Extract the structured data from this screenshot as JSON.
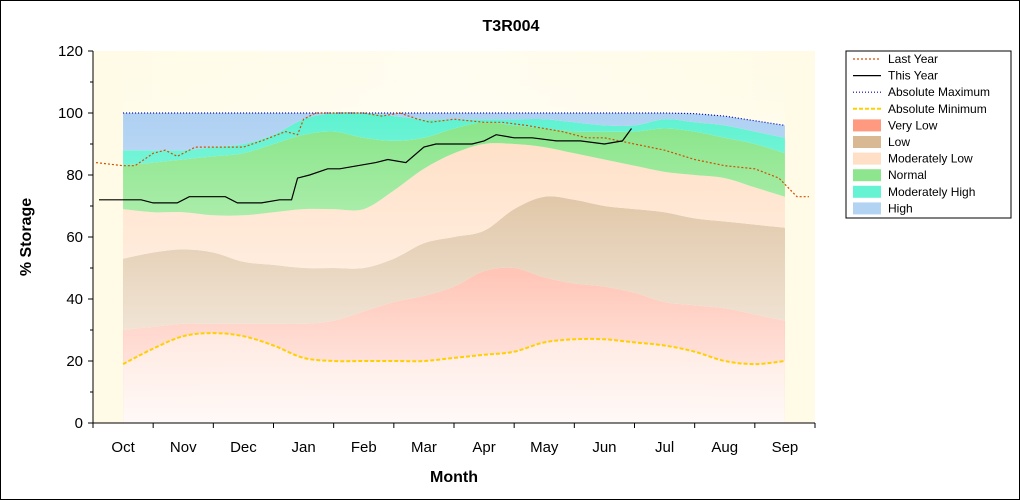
{
  "chart_data": {
    "type": "area",
    "title": "T3R004",
    "xlabel": "Month",
    "ylabel": "% Storage",
    "ylim": [
      0,
      120
    ],
    "yticks": [
      0,
      20,
      40,
      60,
      80,
      100,
      120
    ],
    "months": [
      "Oct",
      "Nov",
      "Dec",
      "Jan",
      "Feb",
      "Mar",
      "Apr",
      "May",
      "Jun",
      "Jul",
      "Aug",
      "Sep"
    ],
    "legend_position": "top-right",
    "grid": false,
    "x_domain": [
      -0.5,
      11.5
    ],
    "series": [
      {
        "name": "Very Low",
        "kind": "band",
        "color": "#ff8060",
        "x": [
          0,
          0.5,
          1,
          1.5,
          2,
          2.5,
          3,
          3.5,
          4,
          4.5,
          5,
          5.5,
          6,
          6.5,
          7,
          7.5,
          8,
          8.5,
          9,
          9.5,
          10,
          10.5,
          11
        ],
        "lower": [
          19,
          24,
          28,
          29,
          28,
          25,
          21,
          20,
          20,
          20,
          20,
          21,
          22,
          23,
          26,
          27,
          27,
          26,
          25,
          23,
          20,
          19,
          20
        ],
        "upper": [
          30,
          31,
          32,
          32,
          32,
          32,
          32,
          33,
          36,
          39,
          41,
          44,
          49,
          50,
          47,
          45,
          44,
          42,
          39,
          38,
          37,
          35,
          33
        ]
      },
      {
        "name": "Low",
        "kind": "band",
        "color": "#d0a878",
        "x": [
          0,
          0.5,
          1,
          1.5,
          2,
          2.5,
          3,
          3.5,
          4,
          4.5,
          5,
          5.5,
          6,
          6.5,
          7,
          7.5,
          8,
          8.5,
          9,
          9.5,
          10,
          10.5,
          11
        ],
        "lower": [
          30,
          31,
          32,
          32,
          32,
          32,
          32,
          33,
          36,
          39,
          41,
          44,
          49,
          50,
          47,
          45,
          44,
          42,
          39,
          38,
          37,
          35,
          33
        ],
        "upper": [
          53,
          55,
          56,
          55,
          52,
          51,
          50,
          50,
          50,
          53,
          58,
          60,
          62,
          69,
          73,
          72,
          70,
          69,
          68,
          66,
          65,
          64,
          63
        ]
      },
      {
        "name": "Moderately Low",
        "kind": "band",
        "color": "#ffd8b8",
        "x": [
          0,
          0.5,
          1,
          1.5,
          2,
          2.5,
          3,
          3.5,
          4,
          4.5,
          5,
          5.5,
          6,
          6.5,
          7,
          7.5,
          8,
          8.5,
          9,
          9.5,
          10,
          10.5,
          11
        ],
        "lower": [
          53,
          55,
          56,
          55,
          52,
          51,
          50,
          50,
          50,
          53,
          58,
          60,
          62,
          69,
          73,
          72,
          70,
          69,
          68,
          66,
          65,
          64,
          63
        ],
        "upper": [
          69,
          68,
          68,
          67,
          67,
          68,
          69,
          69,
          69,
          75,
          82,
          87,
          90,
          90,
          89,
          87,
          85,
          83,
          81,
          80,
          79,
          76,
          73
        ]
      },
      {
        "name": "Normal",
        "kind": "band",
        "color": "#70e070",
        "x": [
          0,
          0.5,
          1,
          1.5,
          2,
          2.5,
          3,
          3.5,
          4,
          4.5,
          5,
          5.5,
          6,
          6.5,
          7,
          7.5,
          8,
          8.5,
          9,
          9.5,
          10,
          10.5,
          11
        ],
        "lower": [
          69,
          68,
          68,
          67,
          67,
          68,
          69,
          69,
          69,
          75,
          82,
          87,
          90,
          90,
          89,
          87,
          85,
          83,
          81,
          80,
          79,
          76,
          73
        ],
        "upper": [
          83,
          84,
          85,
          86,
          87,
          90,
          93,
          94,
          92,
          91,
          92,
          95,
          97,
          96,
          95,
          94,
          94,
          94,
          95,
          94,
          92,
          90,
          87
        ]
      },
      {
        "name": "Moderately High",
        "kind": "band",
        "color": "#40f0c8",
        "x": [
          0,
          0.5,
          1,
          1.5,
          2,
          2.5,
          3,
          3.5,
          4,
          4.5,
          5,
          5.5,
          6,
          6.5,
          7,
          7.5,
          8,
          8.5,
          9,
          9.5,
          10,
          10.5,
          11
        ],
        "lower": [
          83,
          84,
          85,
          86,
          87,
          90,
          93,
          94,
          92,
          91,
          92,
          95,
          97,
          96,
          95,
          94,
          94,
          94,
          95,
          94,
          92,
          90,
          87
        ],
        "upper": [
          88,
          88,
          88,
          89,
          90,
          93,
          98,
          100,
          100,
          99,
          98,
          98,
          98,
          98,
          98,
          97,
          96,
          96,
          98,
          97,
          96,
          94,
          92
        ]
      },
      {
        "name": "High",
        "kind": "band",
        "color": "#a0c8f0",
        "x": [
          0,
          0.5,
          1,
          1.5,
          2,
          2.5,
          3,
          3.5,
          4,
          4.5,
          5,
          5.5,
          6,
          6.5,
          7,
          7.5,
          8,
          8.5,
          9,
          9.5,
          10,
          10.5,
          11
        ],
        "lower": [
          88,
          88,
          88,
          89,
          90,
          93,
          98,
          100,
          100,
          99,
          98,
          98,
          98,
          98,
          98,
          97,
          96,
          96,
          98,
          97,
          96,
          94,
          92
        ],
        "upper": [
          100,
          100,
          100,
          100,
          100,
          100,
          100,
          100,
          100,
          100,
          100,
          100,
          100,
          100,
          100,
          100,
          100,
          100,
          100,
          99.8,
          99,
          97.5,
          96
        ]
      },
      {
        "name": "Absolute Maximum",
        "kind": "line",
        "color": "#0000c0",
        "dash": "1,2",
        "x": [
          0,
          1,
          2,
          3,
          4,
          5,
          6,
          7,
          8,
          9,
          9.5,
          10,
          10.5,
          11
        ],
        "y": [
          100,
          100,
          100,
          100,
          100,
          100,
          100,
          100,
          100,
          100,
          99.8,
          99,
          97.5,
          96
        ]
      },
      {
        "name": "Absolute Minimum",
        "kind": "line",
        "color": "#ffd000",
        "dash": "4,2",
        "width": 2,
        "x": [
          0,
          0.5,
          1,
          1.5,
          2,
          2.5,
          3,
          3.5,
          4,
          4.5,
          5,
          5.5,
          6,
          6.5,
          7,
          7.5,
          8,
          8.5,
          9,
          9.5,
          10,
          10.5,
          11
        ],
        "y": [
          19,
          24,
          28,
          29,
          28,
          25,
          21,
          20,
          20,
          20,
          20,
          21,
          22,
          23,
          26,
          27,
          27,
          26,
          25,
          23,
          20,
          19,
          20
        ]
      },
      {
        "name": "Last Year",
        "kind": "line",
        "color": "#d05000",
        "dash": "2,2",
        "x": [
          -0.45,
          0,
          0.2,
          0.5,
          0.7,
          0.9,
          1.2,
          1.6,
          2,
          2.3,
          2.7,
          2.9,
          3,
          3.2,
          3.5,
          4,
          4.3,
          4.6,
          4.9,
          5.1,
          5.5,
          6,
          6.3,
          6.7,
          7,
          7.3,
          7.7,
          8,
          8.5,
          9,
          9.5,
          10,
          10.5,
          10.9,
          11,
          11.2,
          11.4
        ],
        "y": [
          84,
          83,
          83,
          87,
          88,
          86,
          89,
          89,
          89,
          91,
          94,
          93,
          98,
          100,
          100,
          100,
          99,
          100,
          98,
          97,
          98,
          97,
          97,
          96,
          95,
          94,
          92,
          92,
          90,
          88,
          85,
          83,
          82,
          79,
          77,
          73,
          73
        ]
      },
      {
        "name": "This Year",
        "kind": "line",
        "color": "#000000",
        "x": [
          -0.4,
          0,
          0.3,
          0.5,
          0.9,
          1.1,
          1.4,
          1.7,
          1.9,
          2.3,
          2.6,
          2.8,
          2.9,
          3.1,
          3.4,
          3.6,
          3.9,
          4.2,
          4.4,
          4.7,
          5,
          5.2,
          5.5,
          5.8,
          6,
          6.2,
          6.5,
          6.8,
          7.2,
          7.6,
          8,
          8.3,
          8.45
        ],
        "y": [
          72,
          72,
          72,
          71,
          71,
          73,
          73,
          73,
          71,
          71,
          72,
          72,
          79,
          80,
          82,
          82,
          83,
          84,
          85,
          84,
          89,
          90,
          90,
          90,
          91,
          93,
          92,
          92,
          91,
          91,
          90,
          91,
          95
        ]
      }
    ]
  }
}
